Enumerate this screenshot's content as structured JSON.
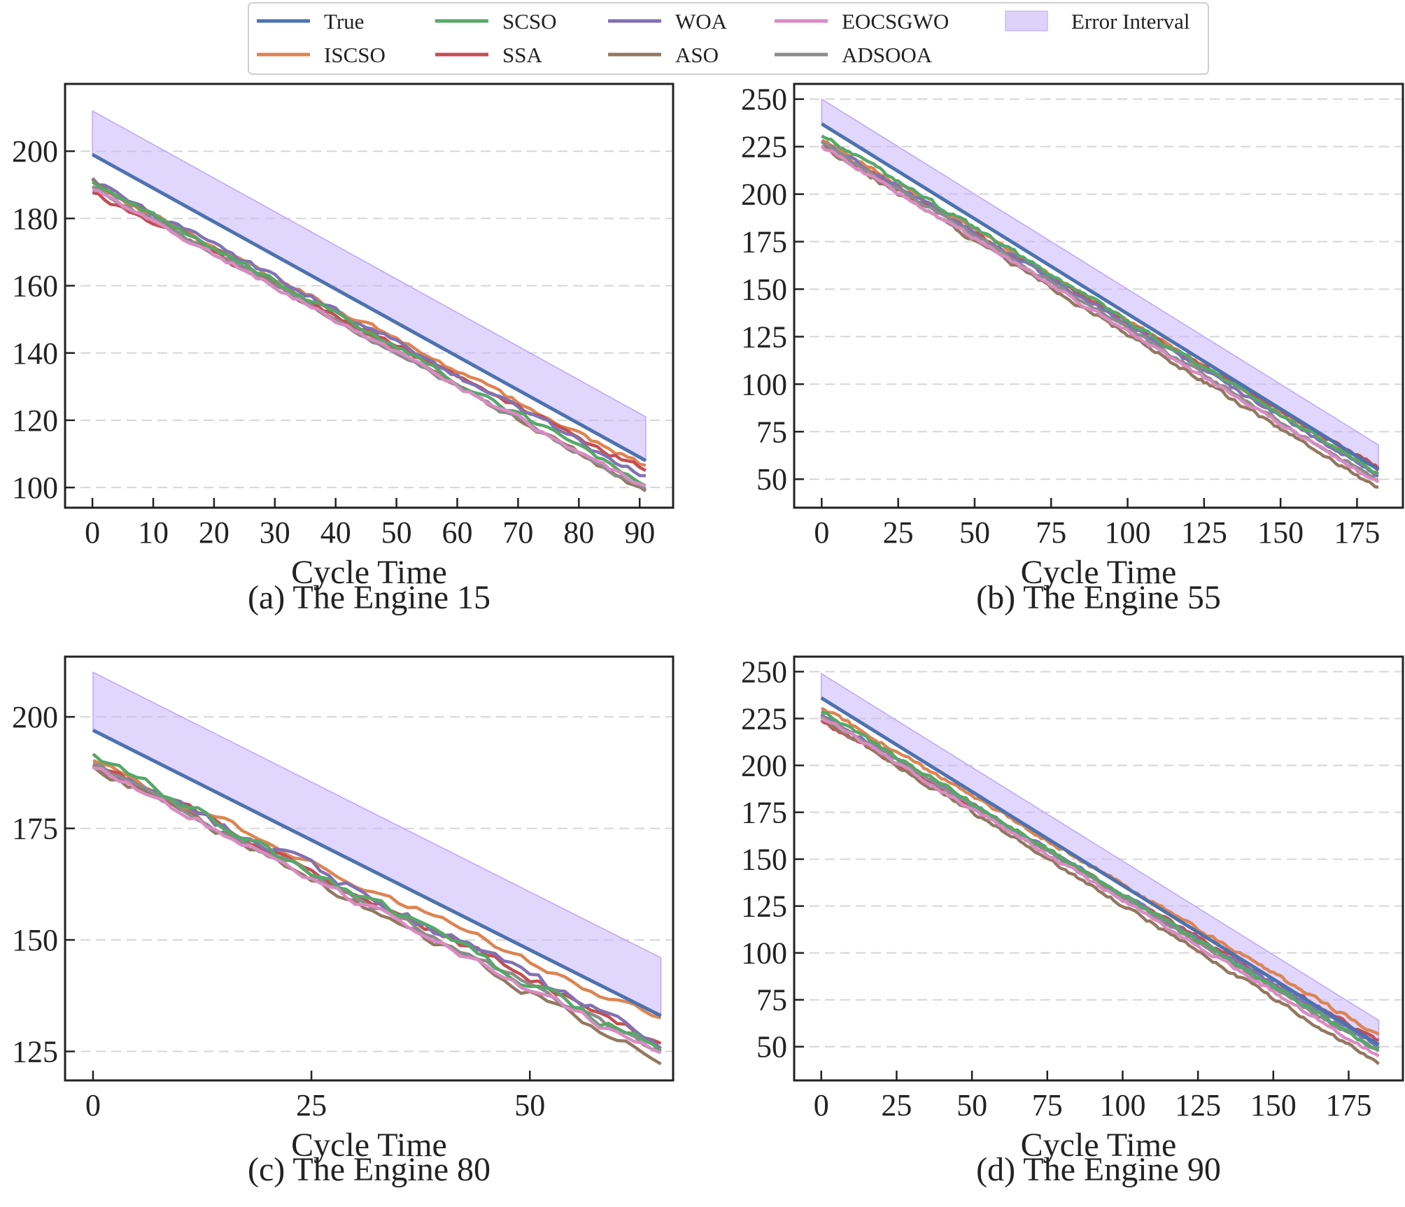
{
  "chart_data": {
    "type": "line",
    "legend": {
      "placement": "top-center",
      "entries": [
        {
          "key": "true",
          "label": "True",
          "color": "#4c72b0"
        },
        {
          "key": "scso",
          "label": "SCSO",
          "color": "#55a868"
        },
        {
          "key": "woa",
          "label": "WOA",
          "color": "#8172b3"
        },
        {
          "key": "eocsgwo",
          "label": "EOCSGWO",
          "color": "#da8bc3"
        },
        {
          "key": "interval",
          "label": "Error Interval",
          "color": "#c8b4f8"
        },
        {
          "key": "iscso",
          "label": "ISCSO",
          "color": "#dd8452"
        },
        {
          "key": "ssa",
          "label": "SSA",
          "color": "#c44e52"
        },
        {
          "key": "aso",
          "label": "ASO",
          "color": "#937860"
        },
        {
          "key": "adsooa",
          "label": "ADSOOA",
          "color": "#8c8c8c"
        }
      ]
    },
    "panels": [
      {
        "id": "a",
        "caption": "(a) The Engine 15",
        "xlabel": "Cycle Time",
        "ylabel": "",
        "xlim": [
          -4.5,
          95.5
        ],
        "ylim": [
          94,
          220
        ],
        "xticks": [
          0,
          10,
          20,
          30,
          40,
          50,
          60,
          70,
          80,
          90
        ],
        "yticks": [
          100,
          120,
          140,
          160,
          180,
          200
        ],
        "grid": "horizontal-dashed",
        "n_cycles": 91,
        "true_start": 199,
        "true_end": 108,
        "interval_upper_start": 212,
        "interval_upper_end": 121,
        "series": [
          {
            "key": "iscso",
            "start": 190,
            "end": 106,
            "noise": 1.6,
            "seed": 11
          },
          {
            "key": "scso",
            "start": 191,
            "end": 101,
            "noise": 1.6,
            "seed": 12
          },
          {
            "key": "ssa",
            "start": 187.5,
            "end": 105,
            "noise": 1.6,
            "seed": 13
          },
          {
            "key": "woa",
            "start": 191.5,
            "end": 103,
            "noise": 1.8,
            "seed": 14
          },
          {
            "key": "aso",
            "start": 191,
            "end": 99,
            "noise": 1.6,
            "seed": 15
          },
          {
            "key": "eocsgwo",
            "start": 189,
            "end": 100,
            "noise": 1.5,
            "seed": 16
          },
          {
            "key": "adsooa",
            "start": 189.5,
            "end": 99.5,
            "noise": 1.5,
            "seed": 17
          }
        ]
      },
      {
        "id": "b",
        "caption": "(b) The Engine 55",
        "xlabel": "Cycle Time",
        "ylabel": "",
        "xlim": [
          -9,
          190
        ],
        "ylim": [
          35,
          258
        ],
        "xticks": [
          0,
          25,
          50,
          75,
          100,
          125,
          150,
          175
        ],
        "yticks": [
          50,
          75,
          100,
          125,
          150,
          175,
          200,
          225,
          250
        ],
        "grid": "horizontal-dashed",
        "n_cycles": 182,
        "true_start": 237,
        "true_end": 55,
        "interval_upper_start": 250,
        "interval_upper_end": 68,
        "series": [
          {
            "key": "iscso",
            "start": 229,
            "end": 55,
            "noise": 1.8,
            "seed": 21
          },
          {
            "key": "scso",
            "start": 231,
            "end": 53,
            "noise": 2.0,
            "seed": 22
          },
          {
            "key": "ssa",
            "start": 226,
            "end": 56,
            "noise": 1.8,
            "seed": 23
          },
          {
            "key": "woa",
            "start": 228,
            "end": 52,
            "noise": 1.8,
            "seed": 24
          },
          {
            "key": "aso",
            "start": 225,
            "end": 45,
            "noise": 2.0,
            "seed": 25
          },
          {
            "key": "eocsgwo",
            "start": 225,
            "end": 48,
            "noise": 1.7,
            "seed": 26
          },
          {
            "key": "adsooa",
            "start": 227,
            "end": 49,
            "noise": 1.7,
            "seed": 27
          }
        ]
      },
      {
        "id": "c",
        "caption": "(c) The Engine 80",
        "xlabel": "Cycle Time",
        "ylabel": "",
        "xlim": [
          -3.2,
          66.4
        ],
        "ylim": [
          118.5,
          213.5
        ],
        "xticks": [
          0,
          25,
          50
        ],
        "yticks": [
          125,
          150,
          175,
          200
        ],
        "grid": "horizontal-dashed",
        "n_cycles": 65,
        "true_start": 197,
        "true_end": 133,
        "interval_upper_start": 210,
        "interval_upper_end": 146,
        "series": [
          {
            "key": "iscso",
            "start": 190,
            "end": 132,
            "noise": 1.6,
            "seed": 31
          },
          {
            "key": "scso",
            "start": 191,
            "end": 125,
            "noise": 2.2,
            "seed": 32
          },
          {
            "key": "ssa",
            "start": 190,
            "end": 127,
            "noise": 1.8,
            "seed": 33
          },
          {
            "key": "woa",
            "start": 190,
            "end": 127,
            "noise": 2.6,
            "seed": 34
          },
          {
            "key": "aso",
            "start": 189,
            "end": 123,
            "noise": 2.0,
            "seed": 35
          },
          {
            "key": "eocsgwo",
            "start": 189,
            "end": 124,
            "noise": 1.8,
            "seed": 36
          },
          {
            "key": "adsooa",
            "start": 189.5,
            "end": 125,
            "noise": 1.6,
            "seed": 37
          }
        ]
      },
      {
        "id": "d",
        "caption": "(d) The Engine 90",
        "xlabel": "Cycle Time",
        "ylabel": "",
        "xlim": [
          -9,
          193
        ],
        "ylim": [
          32,
          258
        ],
        "xticks": [
          0,
          25,
          50,
          75,
          100,
          125,
          150,
          175
        ],
        "yticks": [
          50,
          75,
          100,
          125,
          150,
          175,
          200,
          225,
          250
        ],
        "grid": "horizontal-dashed",
        "n_cycles": 185,
        "true_start": 236,
        "true_end": 51,
        "interval_upper_start": 249,
        "interval_upper_end": 64,
        "series": [
          {
            "key": "iscso",
            "start": 231,
            "end": 56,
            "noise": 1.8,
            "seed": 41
          },
          {
            "key": "scso",
            "start": 229,
            "end": 48,
            "noise": 1.8,
            "seed": 42
          },
          {
            "key": "ssa",
            "start": 224,
            "end": 53,
            "noise": 1.8,
            "seed": 43
          },
          {
            "key": "woa",
            "start": 227,
            "end": 50,
            "noise": 1.8,
            "seed": 44
          },
          {
            "key": "aso",
            "start": 225,
            "end": 41,
            "noise": 1.8,
            "seed": 45
          },
          {
            "key": "eocsgwo",
            "start": 226,
            "end": 45,
            "noise": 1.7,
            "seed": 46
          },
          {
            "key": "adsooa",
            "start": 227,
            "end": 47,
            "noise": 1.7,
            "seed": 47
          }
        ]
      }
    ]
  }
}
